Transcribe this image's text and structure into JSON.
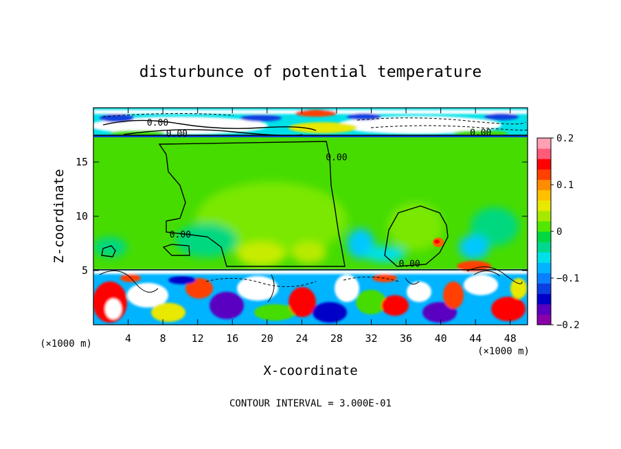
{
  "chart_data": {
    "type": "heatmap",
    "title": "disturbunce of potential temperature",
    "xlabel": "X-coordinate",
    "ylabel": "Z-coordinate",
    "x_unit": "(×1000 m)",
    "y_unit": "(×1000 m)",
    "xlim": [
      0,
      50
    ],
    "ylim": [
      0,
      20
    ],
    "x_ticks": [
      4,
      8,
      12,
      16,
      20,
      24,
      28,
      32,
      36,
      40,
      44,
      48
    ],
    "y_ticks": [
      5,
      10,
      15
    ],
    "colorbar": {
      "range": [
        -0.2,
        0.2
      ],
      "tick_values": [
        0.2,
        0.1,
        0,
        -0.1,
        -0.2
      ],
      "tick_labels": [
        "0.2",
        "0.1",
        "0",
        "−0.1",
        "−0.2"
      ],
      "colors": [
        "#8a00a8",
        "#5a00c0",
        "#0000c8",
        "#0a40e0",
        "#0a80ff",
        "#00b4ff",
        "#00e0e8",
        "#00d890",
        "#00d840",
        "#50e800",
        "#a8e800",
        "#e8e800",
        "#ffc000",
        "#ff8c00",
        "#ff4000",
        "#ff0000",
        "#ff5a78",
        "#ffa0b4"
      ]
    },
    "contour_labels": [
      {
        "x": 7.4,
        "z": 18.6,
        "text": "0.00"
      },
      {
        "x": 9.6,
        "z": 17.6,
        "text": "0.00"
      },
      {
        "x": 44.6,
        "z": 17.7,
        "text": "0.00"
      },
      {
        "x": 28.0,
        "z": 15.4,
        "text": "0.00"
      },
      {
        "x": 10.0,
        "z": 8.3,
        "text": "0.00"
      },
      {
        "x": 36.4,
        "z": 5.6,
        "text": "0.00"
      }
    ],
    "contour_interval_text": "CONTOUR INTERVAL = 3.000E-01",
    "grid": false,
    "legend": "colorbar at right"
  }
}
